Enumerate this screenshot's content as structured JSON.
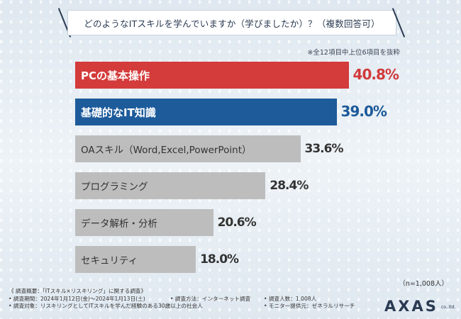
{
  "chart_data": {
    "type": "bar",
    "orientation": "horizontal",
    "title": "どのようなITスキルを学んでいますか（学びましたか）？（複数回答可）",
    "note": "※全12項目中上位6項目を抜粋",
    "categories": [
      "PCの基本操作",
      "基礎的なIT知識",
      "OAスキル（Word,Excel,PowerPoint）",
      "プログラミング",
      "データ解析・分析",
      "セキュリティ"
    ],
    "values": [
      40.8,
      39.0,
      33.6,
      28.4,
      20.6,
      18.0
    ],
    "value_labels": [
      "40.8%",
      "39.0%",
      "33.6%",
      "28.4%",
      "20.6%",
      "18.0%"
    ],
    "unit": "%",
    "sample_size": "（n=1,008人）",
    "colors": [
      "#d43b3b",
      "#1d5b9b",
      "#bdbdbd",
      "#bdbdbd",
      "#bdbdbd",
      "#bdbdbd"
    ]
  },
  "footer": {
    "line1": "《 調査概要：「ITスキル×リスキリング」に関する調査》",
    "period": "• 調査期間：2024年1月12日(金)～2024年1月13日(土)",
    "method": "• 調査方法：インターネット調査",
    "people": "• 調査人数：1,008人",
    "target": "• 調査対象：リスキリングとしてITスキルを学んだ経験のある30歳以上の社会人",
    "provider": "• モニター提供元：ゼネラルリサーチ"
  },
  "logo": {
    "main": "AXAS",
    "sub": "co.,ltd."
  }
}
